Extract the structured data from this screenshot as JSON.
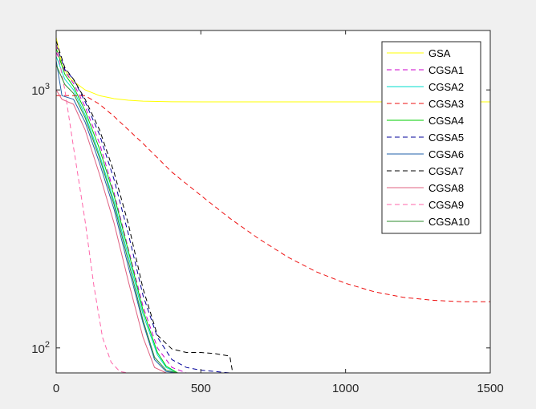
{
  "chart_data": {
    "type": "line",
    "title": "",
    "xlabel": "",
    "ylabel": "",
    "xlim": [
      0,
      1500
    ],
    "ylim": [
      80,
      1700
    ],
    "yscale": "log",
    "grid": false,
    "legend_position": "top-right",
    "x_ticks": [
      {
        "value": 0,
        "label": "0"
      },
      {
        "value": 500,
        "label": "500"
      },
      {
        "value": 1000,
        "label": "1000"
      },
      {
        "value": 1500,
        "label": "1500"
      }
    ],
    "y_ticks": [
      {
        "value": 100,
        "base": "10",
        "exp": "2"
      },
      {
        "value": 1000,
        "base": "10",
        "exp": "3"
      }
    ],
    "series": [
      {
        "name": "GSA",
        "color": "#ffff00",
        "dash": "solid",
        "points": [
          [
            0,
            1600
          ],
          [
            20,
            1250
          ],
          [
            50,
            1100
          ],
          [
            100,
            1000
          ],
          [
            150,
            950
          ],
          [
            200,
            925
          ],
          [
            250,
            912
          ],
          [
            300,
            905
          ],
          [
            400,
            900
          ],
          [
            600,
            899
          ],
          [
            1000,
            899
          ],
          [
            1500,
            899
          ]
        ]
      },
      {
        "name": "CGSA1",
        "color": "#cc00cc",
        "dash": "dashed",
        "points": [
          [
            0,
            1400
          ],
          [
            30,
            1180
          ],
          [
            60,
            1060
          ],
          [
            100,
            860
          ],
          [
            150,
            620
          ],
          [
            200,
            400
          ],
          [
            250,
            240
          ],
          [
            300,
            145
          ],
          [
            350,
            100
          ],
          [
            400,
            84
          ],
          [
            450,
            80
          ],
          [
            1500,
            80
          ]
        ]
      },
      {
        "name": "CGSA2",
        "color": "#00ddcc",
        "dash": "solid",
        "points": [
          [
            0,
            1350
          ],
          [
            30,
            1100
          ],
          [
            60,
            1000
          ],
          [
            100,
            800
          ],
          [
            150,
            560
          ],
          [
            200,
            370
          ],
          [
            250,
            225
          ],
          [
            300,
            135
          ],
          [
            350,
            94
          ],
          [
            380,
            84
          ],
          [
            420,
            80
          ],
          [
            1500,
            80
          ]
        ]
      },
      {
        "name": "CGSA3",
        "color": "#ee1111",
        "dash": "dashed",
        "points": [
          [
            0,
            950
          ],
          [
            50,
            950
          ],
          [
            100,
            950
          ],
          [
            150,
            880
          ],
          [
            200,
            790
          ],
          [
            300,
            620
          ],
          [
            400,
            480
          ],
          [
            500,
            390
          ],
          [
            600,
            318
          ],
          [
            700,
            265
          ],
          [
            800,
            225
          ],
          [
            900,
            197
          ],
          [
            1000,
            178
          ],
          [
            1100,
            165
          ],
          [
            1200,
            157
          ],
          [
            1300,
            153
          ],
          [
            1400,
            151
          ],
          [
            1500,
            151
          ]
        ]
      },
      {
        "name": "CGSA4",
        "color": "#00cc00",
        "dash": "solid",
        "points": [
          [
            0,
            1450
          ],
          [
            30,
            1150
          ],
          [
            60,
            1030
          ],
          [
            100,
            830
          ],
          [
            150,
            590
          ],
          [
            200,
            390
          ],
          [
            250,
            236
          ],
          [
            300,
            140
          ],
          [
            350,
            96
          ],
          [
            380,
            85
          ],
          [
            420,
            80
          ],
          [
            1500,
            80
          ]
        ]
      },
      {
        "name": "CGSA5",
        "color": "#000099",
        "dash": "dashed",
        "points": [
          [
            0,
            1500
          ],
          [
            30,
            1200
          ],
          [
            60,
            1100
          ],
          [
            100,
            900
          ],
          [
            150,
            670
          ],
          [
            200,
            450
          ],
          [
            250,
            275
          ],
          [
            300,
            160
          ],
          [
            350,
            110
          ],
          [
            400,
            90
          ],
          [
            450,
            84
          ],
          [
            500,
            82
          ],
          [
            550,
            81
          ],
          [
            600,
            80
          ],
          [
            1500,
            80
          ]
        ]
      },
      {
        "name": "CGSA6",
        "color": "#1f5fa8",
        "dash": "solid",
        "points": [
          [
            0,
            1300
          ],
          [
            20,
            950
          ],
          [
            60,
            920
          ],
          [
            100,
            750
          ],
          [
            150,
            520
          ],
          [
            200,
            345
          ],
          [
            250,
            205
          ],
          [
            300,
            125
          ],
          [
            340,
            90
          ],
          [
            380,
            81
          ],
          [
            420,
            80
          ],
          [
            1500,
            80
          ]
        ]
      },
      {
        "name": "CGSA7",
        "color": "#000000",
        "dash": "dashed",
        "points": [
          [
            0,
            1550
          ],
          [
            30,
            1220
          ],
          [
            60,
            1100
          ],
          [
            100,
            920
          ],
          [
            150,
            700
          ],
          [
            200,
            480
          ],
          [
            250,
            300
          ],
          [
            300,
            170
          ],
          [
            350,
            112
          ],
          [
            400,
            99
          ],
          [
            450,
            96
          ],
          [
            500,
            96
          ],
          [
            550,
            95
          ],
          [
            600,
            93
          ],
          [
            610,
            80
          ],
          [
            1500,
            80
          ]
        ]
      },
      {
        "name": "CGSA8",
        "color": "#e06080",
        "dash": "solid",
        "points": [
          [
            0,
            1000
          ],
          [
            20,
            920
          ],
          [
            60,
            880
          ],
          [
            100,
            700
          ],
          [
            150,
            470
          ],
          [
            200,
            305
          ],
          [
            250,
            180
          ],
          [
            300,
            110
          ],
          [
            340,
            84
          ],
          [
            380,
            80
          ],
          [
            1500,
            80
          ]
        ]
      },
      {
        "name": "CGSA9",
        "color": "#ff66aa",
        "dash": "dashed",
        "points": [
          [
            0,
            1500
          ],
          [
            30,
            1000
          ],
          [
            60,
            600
          ],
          [
            100,
            310
          ],
          [
            130,
            175
          ],
          [
            160,
            110
          ],
          [
            190,
            88
          ],
          [
            220,
            81
          ],
          [
            250,
            80
          ],
          [
            1500,
            80
          ]
        ]
      },
      {
        "name": "CGSA10",
        "color": "#2e8b2e",
        "dash": "solid",
        "points": [
          [
            0,
            1250
          ],
          [
            30,
            1050
          ],
          [
            60,
            970
          ],
          [
            100,
            780
          ],
          [
            150,
            545
          ],
          [
            200,
            360
          ],
          [
            250,
            215
          ],
          [
            300,
            128
          ],
          [
            340,
            92
          ],
          [
            380,
            82
          ],
          [
            420,
            80
          ],
          [
            1500,
            80
          ]
        ]
      }
    ]
  }
}
